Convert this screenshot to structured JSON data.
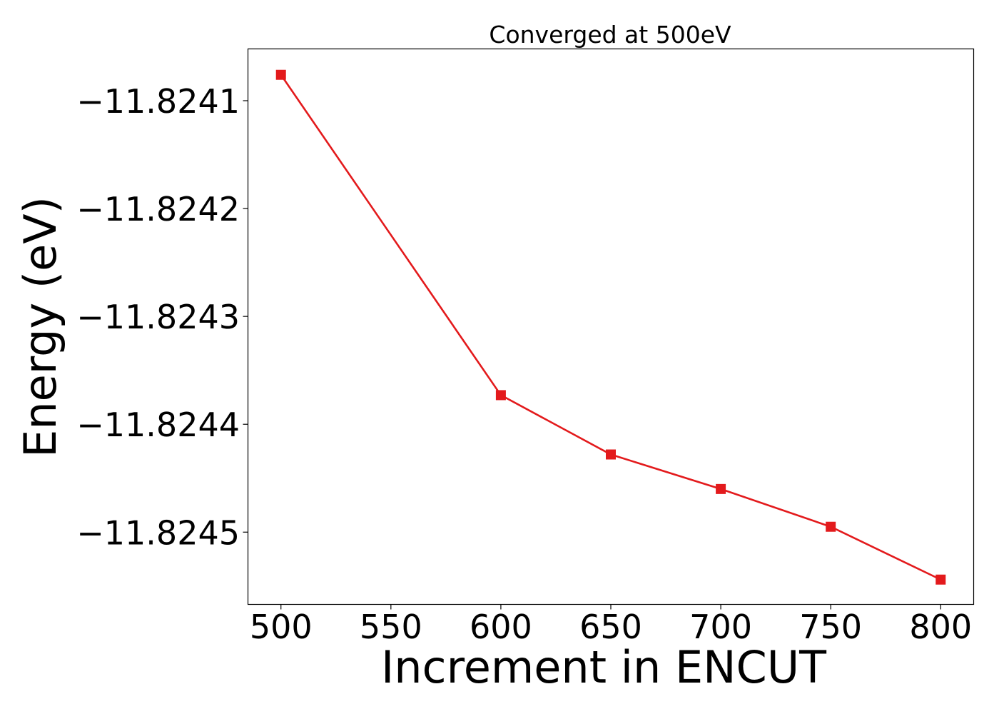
{
  "chart_data": {
    "type": "line",
    "title": "Converged at 500eV",
    "xlabel": "Increment in ENCUT",
    "ylabel": "Energy (eV)",
    "x": [
      500,
      600,
      650,
      700,
      750,
      800
    ],
    "series": [
      {
        "values": [
          -11.824076,
          -11.824373,
          -11.824428,
          -11.82446,
          -11.824495,
          -11.824544
        ],
        "color": "#e31a1c",
        "marker": "square"
      }
    ],
    "xticks": [
      500,
      550,
      600,
      650,
      700,
      750,
      800
    ],
    "xtick_labels": [
      "500",
      "550",
      "600",
      "650",
      "700",
      "750",
      "800"
    ],
    "yticks": [
      -11.8241,
      -11.8242,
      -11.8243,
      -11.8244,
      -11.8245
    ],
    "ytick_labels": [
      "−11.8241",
      "−11.8242",
      "−11.8243",
      "−11.8244",
      "−11.8245"
    ],
    "xlim": [
      485,
      815
    ],
    "ylim": [
      -11.824567,
      -11.824052
    ],
    "grid": false,
    "legend": "none"
  }
}
